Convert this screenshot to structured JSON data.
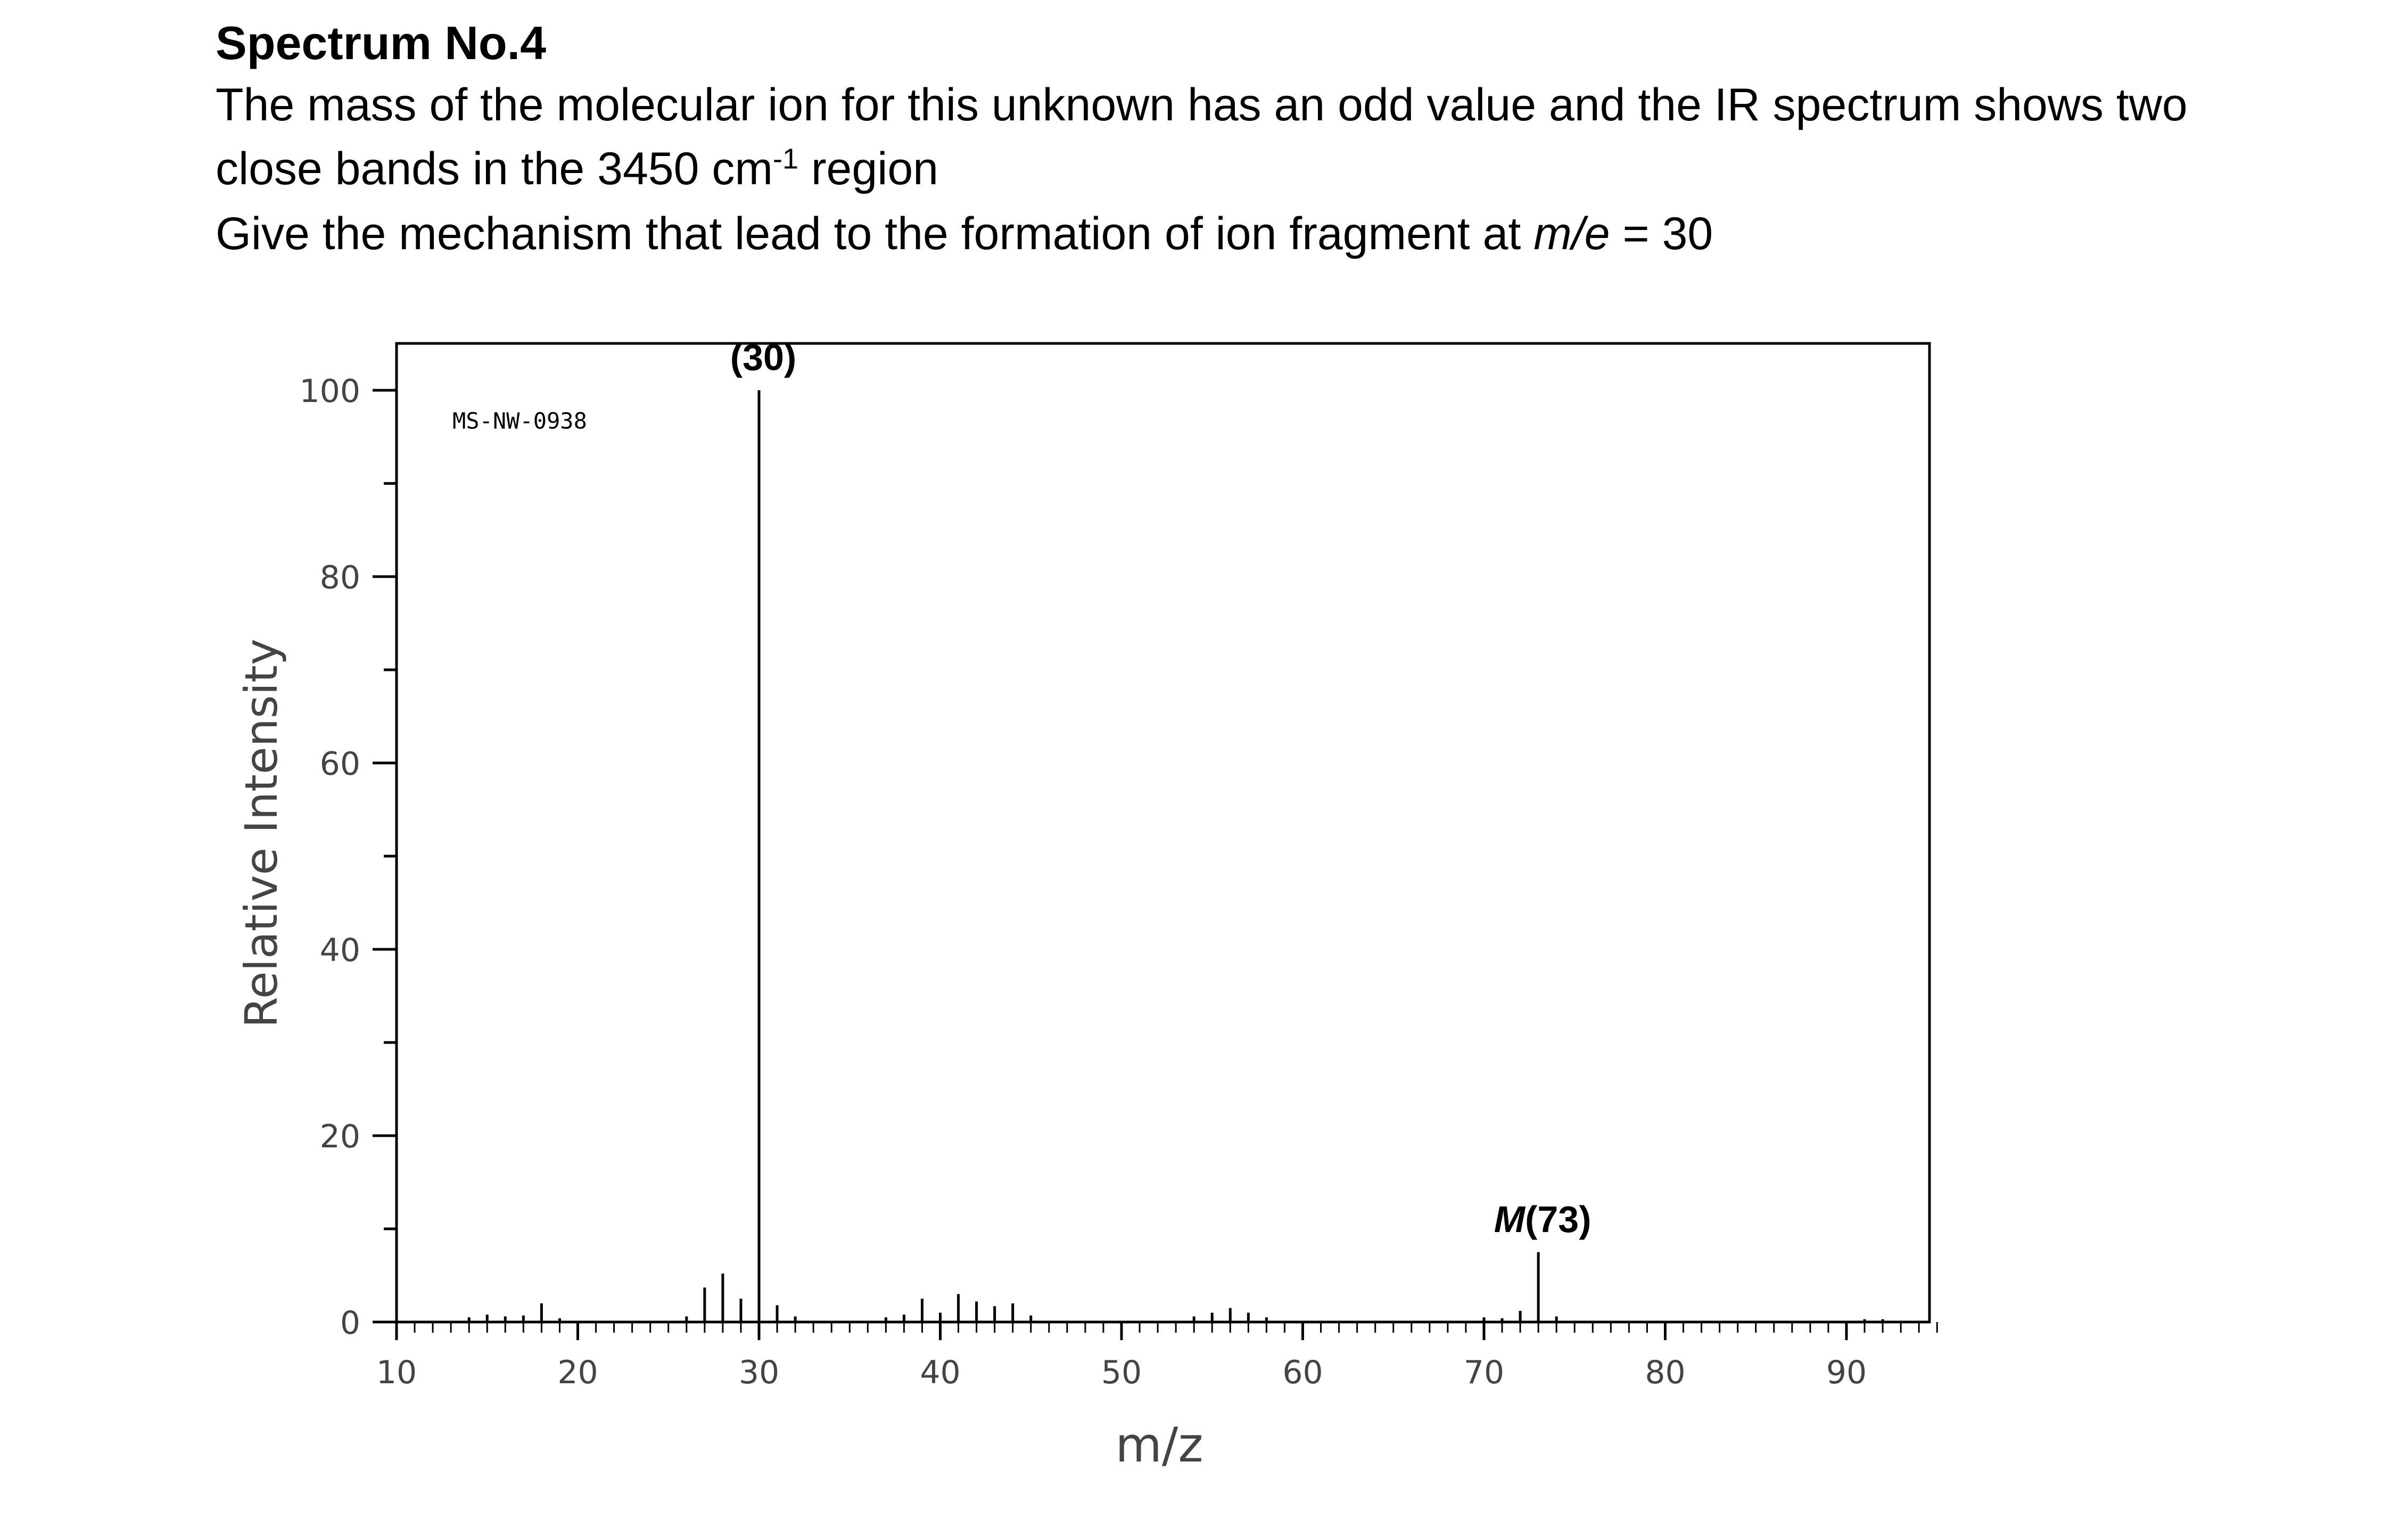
{
  "document": {
    "heading": "Spectrum No.4",
    "line1": "The mass of the molecular ion for this unknown has an odd value and the IR spectrum shows two",
    "line2_before": "close bands in the 3450 cm",
    "line2_sup": "-1",
    "line2_after": " region",
    "line3_before": "Give the mechanism that lead to the formation of ion fragment at ",
    "line3_italic": "m/e",
    "line3_after": " = 30"
  },
  "chart_data": {
    "type": "bar",
    "code_label": "MS-NW-0938",
    "xlabel": "m/z",
    "ylabel": "Relative Intensity",
    "xlim": [
      10,
      95
    ],
    "ylim": [
      0,
      105
    ],
    "x_ticks": [
      "10",
      "20",
      "30",
      "40",
      "50",
      "60",
      "70",
      "80",
      "90"
    ],
    "y_ticks": [
      "0",
      "20",
      "40",
      "60",
      "80",
      "100"
    ],
    "peaks": [
      {
        "mz": 14,
        "intensity": 0.5
      },
      {
        "mz": 15,
        "intensity": 0.8
      },
      {
        "mz": 16,
        "intensity": 0.6
      },
      {
        "mz": 17,
        "intensity": 0.7
      },
      {
        "mz": 18,
        "intensity": 2.0
      },
      {
        "mz": 19,
        "intensity": 0.4
      },
      {
        "mz": 26,
        "intensity": 0.6
      },
      {
        "mz": 27,
        "intensity": 3.7
      },
      {
        "mz": 28,
        "intensity": 5.2
      },
      {
        "mz": 29,
        "intensity": 2.5
      },
      {
        "mz": 30,
        "intensity": 100
      },
      {
        "mz": 31,
        "intensity": 1.8
      },
      {
        "mz": 32,
        "intensity": 0.6
      },
      {
        "mz": 37,
        "intensity": 0.5
      },
      {
        "mz": 38,
        "intensity": 0.8
      },
      {
        "mz": 39,
        "intensity": 2.5
      },
      {
        "mz": 40,
        "intensity": 1.0
      },
      {
        "mz": 41,
        "intensity": 3.0
      },
      {
        "mz": 42,
        "intensity": 2.2
      },
      {
        "mz": 43,
        "intensity": 1.7
      },
      {
        "mz": 44,
        "intensity": 2.0
      },
      {
        "mz": 45,
        "intensity": 0.7
      },
      {
        "mz": 54,
        "intensity": 0.6
      },
      {
        "mz": 55,
        "intensity": 1.0
      },
      {
        "mz": 56,
        "intensity": 1.5
      },
      {
        "mz": 57,
        "intensity": 1.0
      },
      {
        "mz": 58,
        "intensity": 0.5
      },
      {
        "mz": 70,
        "intensity": 0.5
      },
      {
        "mz": 71,
        "intensity": 0.4
      },
      {
        "mz": 72,
        "intensity": 1.2
      },
      {
        "mz": 73,
        "intensity": 7.5
      },
      {
        "mz": 74,
        "intensity": 0.6
      },
      {
        "mz": 91,
        "intensity": 0.3
      },
      {
        "mz": 92,
        "intensity": 0.3
      }
    ],
    "annotations": [
      {
        "text": "(30)",
        "mz": 30,
        "italic_prefix": "",
        "intensity": 100
      },
      {
        "text": "(73)",
        "mz": 73,
        "italic_prefix": "M",
        "intensity": 7.5
      }
    ],
    "grid": false
  }
}
